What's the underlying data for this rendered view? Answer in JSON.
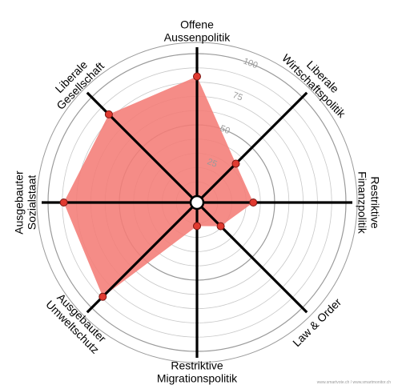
{
  "chart_data": {
    "type": "radar",
    "axes": [
      {
        "name": "Offene Aussenpolitik",
        "lines": [
          "Offene",
          "Aussenpolitik"
        ]
      },
      {
        "name": "Liberale Wirtschaftspolitik",
        "lines": [
          "Liberale",
          "Wirtschaftspolitik"
        ]
      },
      {
        "name": "Restriktive Finanzpolitik",
        "lines": [
          "Restriktive",
          "Finanzpolitik"
        ]
      },
      {
        "name": "Law & Order",
        "lines": [
          "Law & Order"
        ]
      },
      {
        "name": "Restriktive Migrationspolitik",
        "lines": [
          "Restriktive",
          "Migrationspolitik"
        ]
      },
      {
        "name": "Ausgebauter Umweltschutz",
        "lines": [
          "Ausgebauter",
          "Umweltschutz"
        ]
      },
      {
        "name": "Ausgebauter Sozialstaat",
        "lines": [
          "Ausgebauter",
          "Sozialstaat"
        ]
      },
      {
        "name": "Liberale Gesellschaft",
        "lines": [
          "Liberale",
          "Gesellschaft"
        ]
      }
    ],
    "values": [
      84,
      34,
      35,
      19,
      12,
      89,
      89,
      83
    ],
    "rlim": [
      0,
      100
    ],
    "ticks": [
      "25",
      "50",
      "75",
      "100"
    ],
    "grid": true,
    "fill_color": "#f47c76",
    "marker_color": "#e03a30"
  },
  "credit": "www.smartvote.ch / www.smartmonitor.ch"
}
